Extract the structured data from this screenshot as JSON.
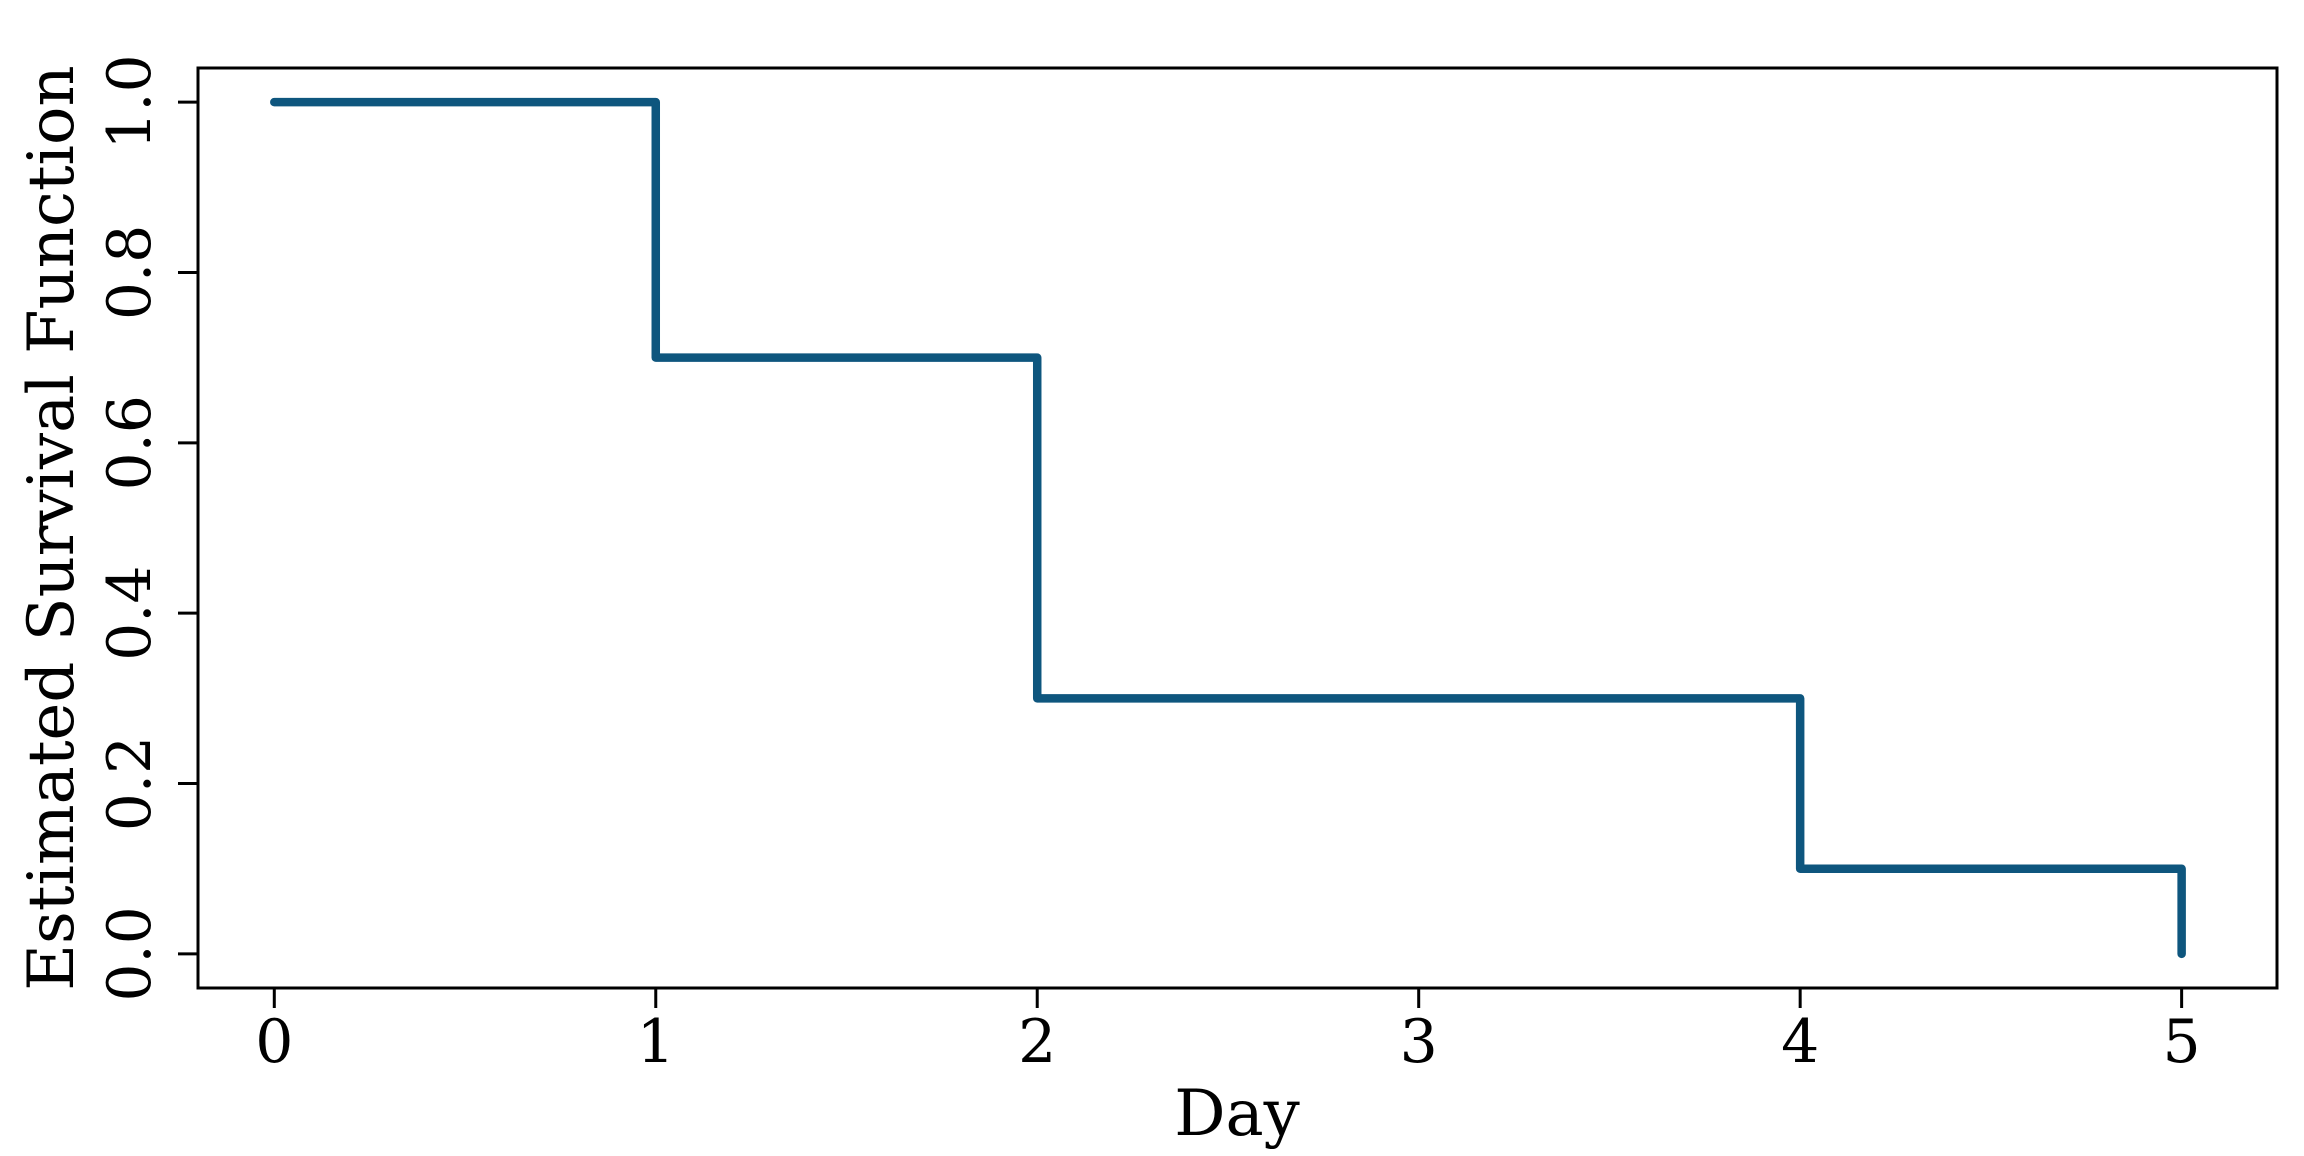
{
  "colors": {
    "line": "#0e567e",
    "axis": "#000000",
    "background": "#ffffff"
  },
  "chart_data": {
    "type": "line",
    "subtype": "step-post",
    "title": "",
    "xlabel": "Day",
    "ylabel": "Estimated Survival Function",
    "x": [
      0,
      1,
      2,
      4,
      5
    ],
    "y": [
      1.0,
      0.7,
      0.3,
      0.1,
      0.0
    ],
    "points": [
      {
        "x": 0,
        "y": 1.0
      },
      {
        "x": 1,
        "y": 0.7
      },
      {
        "x": 2,
        "y": 0.3
      },
      {
        "x": 4,
        "y": 0.1
      },
      {
        "x": 5,
        "y": 0.0
      }
    ],
    "xticks": [
      0,
      1,
      2,
      3,
      4,
      5
    ],
    "xtick_labels": [
      "0",
      "1",
      "2",
      "3",
      "4",
      "5"
    ],
    "yticks": [
      0.0,
      0.2,
      0.4,
      0.6,
      0.8,
      1.0
    ],
    "ytick_labels": [
      "0.0",
      "0.2",
      "0.4",
      "0.6",
      "0.8",
      "1.0"
    ],
    "ytick_label_rotation": -90,
    "xlim": [
      -0.2,
      5.25
    ],
    "ylim": [
      -0.04,
      1.04
    ],
    "grid": false,
    "legend": null,
    "line_color": "#0e567e",
    "line_width": 8.5
  }
}
